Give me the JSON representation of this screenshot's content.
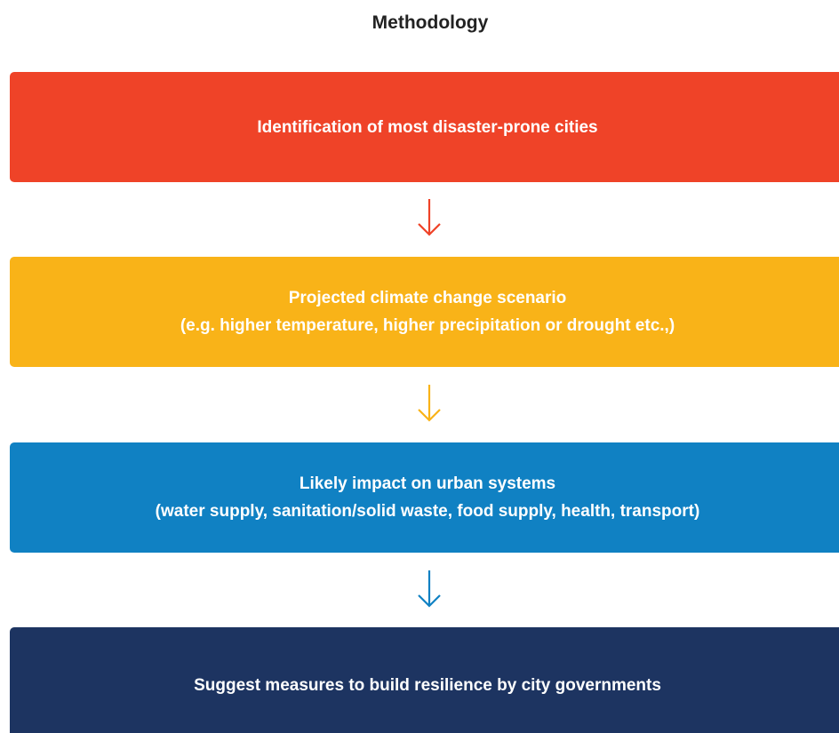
{
  "title": "Methodology",
  "steps": [
    {
      "lines": [
        "Identification of most disaster-prone cities"
      ]
    },
    {
      "lines": [
        "Projected climate change scenario",
        "(e.g. higher temperature, higher precipitation or drought etc.,)"
      ]
    },
    {
      "lines": [
        "Likely impact on urban systems",
        "(water supply, sanitation/solid waste, food supply, health, transport)"
      ]
    },
    {
      "lines": [
        "Suggest measures to build resilience by city governments"
      ]
    }
  ]
}
